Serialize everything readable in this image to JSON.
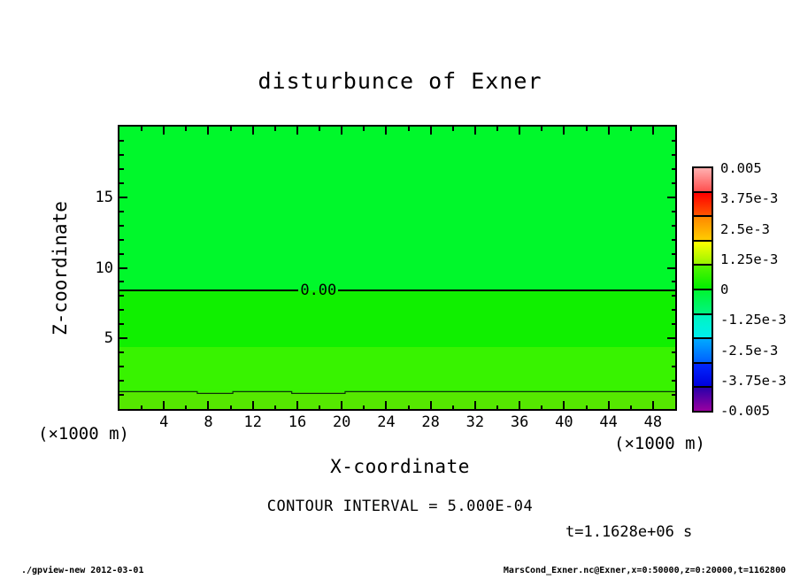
{
  "title": "disturbunce of Exner",
  "plot": {
    "x_axis": {
      "label": "X-coordinate",
      "unit": "(×1000 m)",
      "min": 0,
      "max": 50,
      "major_ticks": [
        4,
        8,
        12,
        16,
        20,
        24,
        28,
        32,
        36,
        40,
        44,
        48
      ],
      "minor_ticks": [
        2,
        6,
        10,
        14,
        18,
        22,
        26,
        30,
        34,
        38,
        42,
        46
      ]
    },
    "z_axis": {
      "label": "Z-coordinate",
      "unit": "(×1000 m)",
      "min": 0,
      "max": 20,
      "major_ticks": [
        5,
        10,
        15
      ],
      "minor_ticks": [
        1,
        2,
        3,
        4,
        6,
        7,
        8,
        9,
        11,
        12,
        13,
        14,
        16,
        17,
        18,
        19
      ]
    }
  },
  "chart_data": {
    "type": "heatmap",
    "title": "disturbunce of Exner",
    "xlabel": "X-coordinate",
    "ylabel": "Z-coordinate",
    "x_range": [
      0,
      50
    ],
    "z_range": [
      0,
      20
    ],
    "axis_unit": "(×1000 m)",
    "contour_interval": 0.0005,
    "contour_lines": [
      {
        "value": 0.0,
        "label": "0.00",
        "z_km": 8.4,
        "labeled": true,
        "label_gap_km": [
          16.1,
          19.7
        ]
      },
      {
        "value": 0.0005,
        "label": "",
        "z_km": 1.2,
        "labeled": false,
        "dips_km": [
          [
            7.0,
            10.2
          ],
          [
            15.5,
            20.3
          ]
        ]
      }
    ],
    "shade_bands": [
      {
        "z_from": 8.4,
        "z_to": 20.0,
        "value_range": "-5e-4 to 0",
        "color": "#00f82b"
      },
      {
        "z_from": 4.4,
        "z_to": 8.4,
        "value_range": "0 to 2.5e-4",
        "color": "#10f000"
      },
      {
        "z_from": 1.2,
        "z_to": 4.4,
        "value_range": "2.5e-4 to 5e-4",
        "color": "#38f300"
      },
      {
        "z_from": 0.0,
        "z_to": 1.2,
        "value_range": "above 5e-4",
        "color": "#55e800"
      }
    ],
    "colorbar": {
      "range": [
        -0.005,
        0.005
      ],
      "tick_values": [
        0.005,
        0.00375,
        0.0025,
        0.00125,
        0,
        -0.00125,
        -0.0025,
        -0.00375,
        -0.005
      ],
      "labels": [
        "0.005",
        "3.75e-3",
        "2.5e-3",
        "1.25e-3",
        "0",
        "-1.25e-3",
        "-2.5e-3",
        "-3.75e-3",
        "-0.005"
      ],
      "segments": [
        {
          "from": "#ffb0b0",
          "to": "#ff5050"
        },
        {
          "from": "#ff0000",
          "to": "#ff5500"
        },
        {
          "from": "#ff8800",
          "to": "#ffcc00"
        },
        {
          "from": "#ffff00",
          "to": "#99f500"
        },
        {
          "from": "#55f500",
          "to": "#00ee00"
        },
        {
          "from": "#00f531",
          "to": "#00f580"
        },
        {
          "from": "#00f5c0",
          "to": "#00eeee"
        },
        {
          "from": "#00aaff",
          "to": "#0060ff"
        },
        {
          "from": "#0028ff",
          "to": "#0000dd"
        },
        {
          "from": "#2a00aa",
          "to": "#9900a0"
        }
      ]
    }
  },
  "annotations": {
    "contour_interval_text": "CONTOUR INTERVAL = 5.000E-04",
    "time_text": "t=1.1628e+06 s"
  },
  "footer": {
    "left": "./gpview-new  2012-03-01",
    "right": "MarsCond_Exner.nc@Exner,x=0:50000,z=0:20000,t=1162800"
  }
}
